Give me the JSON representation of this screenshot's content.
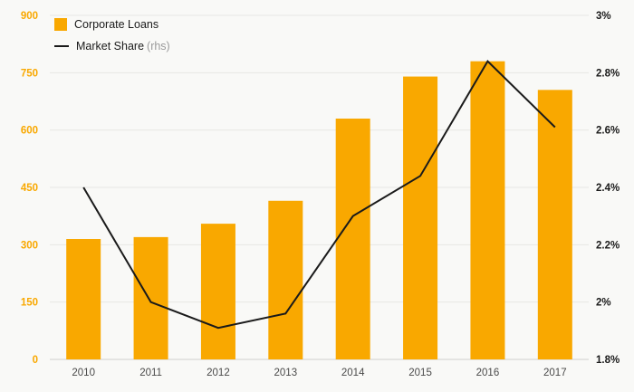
{
  "chart_data": {
    "type": "bar",
    "categories": [
      "2010",
      "2011",
      "2012",
      "2013",
      "2014",
      "2015",
      "2016",
      "2017"
    ],
    "series": [
      {
        "name": "Corporate Loans",
        "type": "bar",
        "axis": "left",
        "color": "#F9A800",
        "values": [
          315,
          320,
          355,
          415,
          630,
          740,
          780,
          705
        ]
      },
      {
        "name": "Market Share",
        "rhs_label": "(rhs)",
        "type": "line",
        "axis": "right",
        "color": "#1a1a1a",
        "values": [
          2.4,
          2.0,
          1.91,
          1.96,
          2.3,
          2.44,
          2.84,
          2.61
        ]
      }
    ],
    "title": "",
    "xlabel": "",
    "ylabel": "",
    "left_axis": {
      "min": 0,
      "max": 900,
      "ticks": [
        0,
        150,
        300,
        450,
        600,
        750,
        900
      ],
      "label_color": "#F9A800"
    },
    "right_axis": {
      "min": 1.8,
      "max": 3.0,
      "ticks": [
        1.8,
        2.0,
        2.2,
        2.4,
        2.6,
        2.8,
        3.0
      ],
      "tick_labels": [
        "1.8%",
        "2%",
        "2.2%",
        "2.4%",
        "2.6%",
        "2.8%",
        "3%"
      ],
      "label_color": "#1a1a1a"
    },
    "grid": true,
    "legend_position": "top-left"
  },
  "colors": {
    "background": "#f9f9f7",
    "gridline": "#e7e7e4",
    "axis_line": "#cfcfcc",
    "x_label": "#4a4a4a"
  }
}
